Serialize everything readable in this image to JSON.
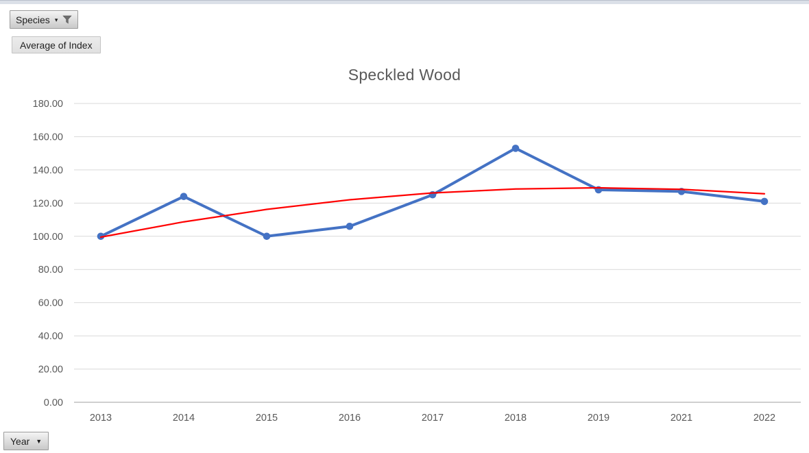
{
  "chrome": {
    "top_band_color": "#dbe0e8"
  },
  "buttons": {
    "species": {
      "label": "Species",
      "state": "filter-applied"
    },
    "value": {
      "label": "Average of Index"
    },
    "axis": {
      "label": "Year"
    }
  },
  "chart_data": {
    "type": "line",
    "title": "Speckled Wood",
    "title_color": "#595959",
    "categories": [
      "2013",
      "2014",
      "2015",
      "2016",
      "2017",
      "2018",
      "2019",
      "2021",
      "2022"
    ],
    "series": [
      {
        "name": "Average of Index",
        "kind": "line",
        "color": "#4472C4",
        "line_width": 4,
        "markers": true,
        "values": [
          100,
          124,
          100,
          106,
          125,
          153,
          128,
          127,
          121
        ]
      },
      {
        "name": "Polynomial trendline",
        "kind": "trendline",
        "color": "#FF0000",
        "line_width": 2.25,
        "markers": false,
        "values": [
          99.5,
          108.7,
          116.2,
          122.0,
          126.1,
          128.5,
          129.2,
          128.3,
          125.6
        ]
      }
    ],
    "ylim": [
      0,
      180
    ],
    "ytick_step": 20,
    "ytick_labels": [
      "0.00",
      "20.00",
      "40.00",
      "60.00",
      "80.00",
      "100.00",
      "120.00",
      "140.00",
      "160.00",
      "180.00"
    ],
    "xlabel": "",
    "ylabel": "",
    "grid": true,
    "gridline_color": "#d9d9d9",
    "axis_line_color": "#bfbfbf",
    "tick_label_color": "#595959",
    "legend": "none"
  }
}
